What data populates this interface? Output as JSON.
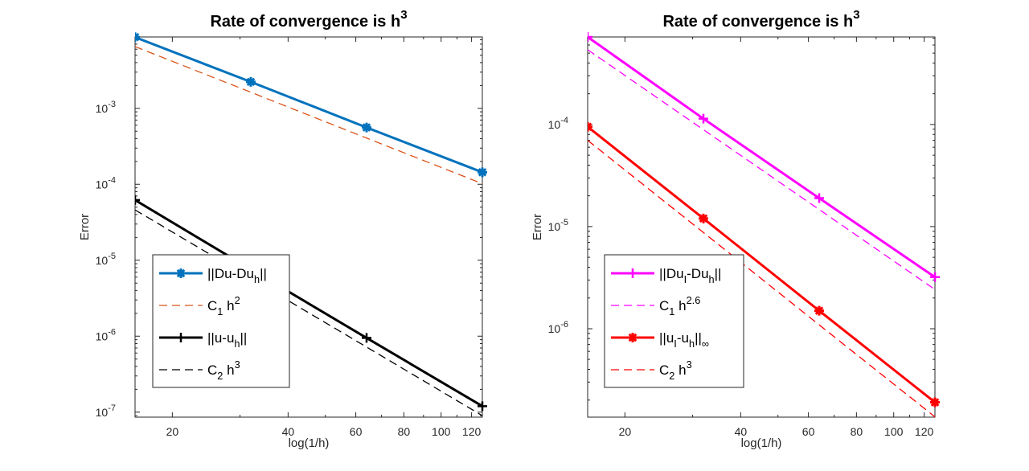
{
  "chart_data": [
    {
      "type": "line",
      "title": {
        "text": "Rate of convergence is h",
        "sup": "3"
      },
      "xlabel": "log(1/h)",
      "ylabel": "Error",
      "xscale": "log",
      "yscale": "log",
      "xlim": [
        16,
        128
      ],
      "ylim": [
        8.6e-08,
        0.0087
      ],
      "xticks": [
        20,
        40,
        60,
        80,
        100,
        120
      ],
      "xtick_labels": [
        "20",
        "40",
        "60",
        "80",
        "100",
        "120"
      ],
      "yticks": [
        0.001,
        0.0001,
        1e-05,
        1e-06,
        1e-07
      ],
      "ytick_labels": [
        {
          "base": "10",
          "exp": "-3"
        },
        {
          "base": "10",
          "exp": "-4"
        },
        {
          "base": "10",
          "exp": "-5"
        },
        {
          "base": "10",
          "exp": "-6"
        },
        {
          "base": "10",
          "exp": "-7"
        }
      ],
      "grid": false,
      "legend_placement": "lower-left",
      "x": [
        16,
        32,
        64,
        128
      ],
      "series": [
        {
          "name": [
            {
              "t": "||Du-Du"
            },
            {
              "sub": "h"
            },
            {
              "t": "||"
            }
          ],
          "values": [
            0.00865,
            0.00223,
            0.00056,
            0.000144
          ],
          "color": "#0072BD",
          "style": "solid",
          "marker": "asterisk"
        },
        {
          "name": [
            {
              "t": "C"
            },
            {
              "sub": "1"
            },
            {
              "t": " h"
            },
            {
              "sup": "2"
            }
          ],
          "values": [
            0.0065,
            0.00163,
            0.000406,
            0.000102
          ],
          "color": "#D95319",
          "style": "dashed",
          "marker": "none"
        },
        {
          "name": [
            {
              "t": "||u-u"
            },
            {
              "sub": "h"
            },
            {
              "t": "||"
            }
          ],
          "values": [
            6.2e-05,
            7.6e-06,
            9.5e-07,
            1.2e-07
          ],
          "color": "#000000",
          "style": "solid",
          "marker": "plus"
        },
        {
          "name": [
            {
              "t": "C"
            },
            {
              "sub": "2"
            },
            {
              "t": " h"
            },
            {
              "sup": "3"
            }
          ],
          "values": [
            4.6e-05,
            5.75e-06,
            7.2e-07,
            9e-08
          ],
          "color": "#000000",
          "style": "dashed",
          "marker": "none"
        }
      ]
    },
    {
      "type": "line",
      "title": {
        "text": "Rate of convergence is h",
        "sup": "3"
      },
      "xlabel": "log(1/h)",
      "ylabel": "Error",
      "xscale": "log",
      "yscale": "log",
      "xlim": [
        16,
        128
      ],
      "ylim": [
        1.36e-07,
        0.00072
      ],
      "xticks": [
        20,
        40,
        60,
        80,
        100,
        120
      ],
      "xtick_labels": [
        "20",
        "40",
        "60",
        "80",
        "100",
        "120"
      ],
      "yticks": [
        0.0001,
        1e-05,
        1e-06
      ],
      "ytick_labels": [
        {
          "base": "10",
          "exp": "-4"
        },
        {
          "base": "10",
          "exp": "-5"
        },
        {
          "base": "10",
          "exp": "-6"
        }
      ],
      "grid": false,
      "legend_placement": "lower-left",
      "x": [
        16,
        32,
        64,
        128
      ],
      "series": [
        {
          "name": [
            {
              "t": "||Du"
            },
            {
              "sub": "I"
            },
            {
              "t": "-Du"
            },
            {
              "sub": "h"
            },
            {
              "t": "||"
            }
          ],
          "values": [
            0.00072,
            0.000114,
            1.9e-05,
            3.2e-06
          ],
          "color": "#FF00FF",
          "style": "solid",
          "marker": "plus"
        },
        {
          "name": [
            {
              "t": "C"
            },
            {
              "sub": "1"
            },
            {
              "t": " h"
            },
            {
              "sup": "2.6"
            }
          ],
          "values": [
            0.00054,
            8.9e-05,
            1.47e-05,
            2.42e-06
          ],
          "color": "#FF00FF",
          "style": "dashed",
          "marker": "none"
        },
        {
          "name": [
            {
              "t": "||u"
            },
            {
              "sub": "I"
            },
            {
              "t": "-u"
            },
            {
              "sub": "h"
            },
            {
              "t": "||"
            },
            {
              "sub": "∞"
            }
          ],
          "values": [
            9.5e-05,
            1.2e-05,
            1.5e-06,
            1.9e-07
          ],
          "color": "#FF0000",
          "style": "solid",
          "marker": "asterisk"
        },
        {
          "name": [
            {
              "t": "C"
            },
            {
              "sub": "2"
            },
            {
              "t": " h"
            },
            {
              "sup": "3"
            }
          ],
          "values": [
            7e-05,
            8.75e-06,
            1.09e-06,
            1.37e-07
          ],
          "color": "#FF0000",
          "style": "dashed",
          "marker": "none"
        }
      ]
    }
  ]
}
